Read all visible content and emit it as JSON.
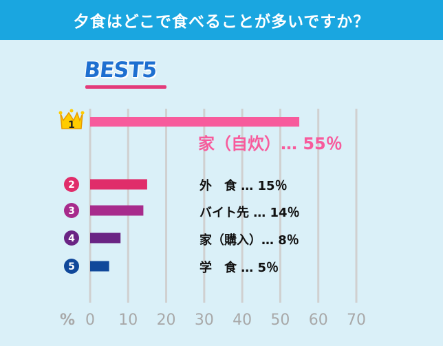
{
  "header": {
    "title": "夕食はどこで食べることが多いですか？"
  },
  "badge": {
    "text": "BEST5"
  },
  "chart_data": {
    "type": "bar",
    "orientation": "horizontal",
    "categories": [
      "家（自炊）",
      "外　食",
      "バイト先",
      "家（購入）",
      "学　食"
    ],
    "values": [
      55,
      15,
      14,
      8,
      5
    ],
    "ranks": [
      "1",
      "2",
      "3",
      "4",
      "5"
    ],
    "value_labels": [
      "家（自炊）…  55％",
      "外　食  …  15％",
      "バイト先  …  14％",
      "家（購入）…  8％",
      "学　食  …  5％"
    ],
    "bar_colors": [
      "#f75b9c",
      "#e02d6a",
      "#a72b8c",
      "#6a2484",
      "#10489a"
    ],
    "x_ticks": [
      0,
      10,
      20,
      30,
      40,
      50,
      60,
      70
    ],
    "x_unit_label": "%",
    "xlim": [
      0,
      70
    ],
    "grid": true,
    "colors": {
      "header": "#1aa6e0",
      "background": "#daf0f8",
      "grid": "#d0d0d0",
      "axis_text": "#a8a8a8",
      "crown": "#ffcc00"
    }
  }
}
